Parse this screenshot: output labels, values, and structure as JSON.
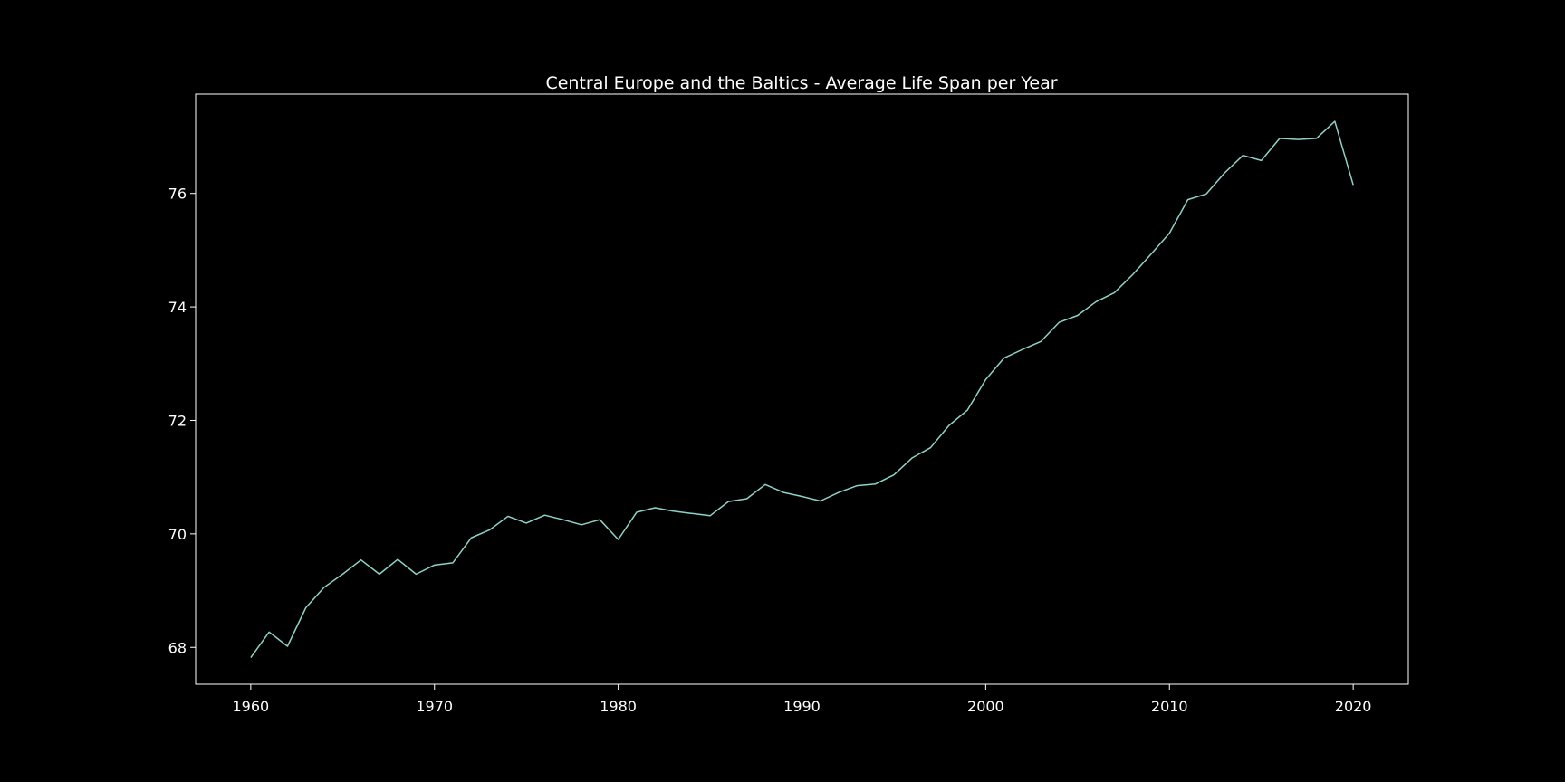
{
  "chart_data": {
    "type": "line",
    "title": "Central Europe and the Baltics - Average Life Span per Year",
    "xlabel": "",
    "ylabel": "",
    "xlim": [
      1957,
      2023
    ],
    "ylim": [
      67.35,
      77.75
    ],
    "xticks": [
      1960,
      1970,
      1980,
      1990,
      2000,
      2010,
      2020
    ],
    "yticks": [
      68,
      70,
      72,
      74,
      76
    ],
    "grid": false,
    "colors": {
      "background": "#000000",
      "line": "#8dd3c7",
      "axes": "#ffffff",
      "text": "#ffffff"
    },
    "x": [
      1960,
      1961,
      1962,
      1963,
      1964,
      1965,
      1966,
      1967,
      1968,
      1969,
      1970,
      1971,
      1972,
      1973,
      1974,
      1975,
      1976,
      1977,
      1978,
      1979,
      1980,
      1981,
      1982,
      1983,
      1984,
      1985,
      1986,
      1987,
      1988,
      1989,
      1990,
      1991,
      1992,
      1993,
      1994,
      1995,
      1996,
      1997,
      1998,
      1999,
      2000,
      2001,
      2002,
      2003,
      2004,
      2005,
      2006,
      2007,
      2008,
      2009,
      2010,
      2011,
      2012,
      2013,
      2014,
      2015,
      2016,
      2017,
      2018,
      2019,
      2020
    ],
    "series": [
      {
        "values": [
          67.82,
          68.27,
          68.02,
          68.7,
          69.06,
          69.29,
          69.54,
          69.29,
          69.55,
          69.29,
          69.45,
          69.49,
          69.93,
          70.07,
          70.31,
          70.19,
          70.33,
          70.25,
          70.16,
          70.25,
          69.9,
          70.38,
          70.46,
          70.4,
          70.36,
          70.32,
          70.57,
          70.62,
          70.87,
          70.73,
          70.66,
          70.58,
          70.73,
          70.85,
          70.88,
          71.04,
          71.34,
          71.52,
          71.91,
          72.18,
          72.72,
          73.1,
          73.25,
          73.39,
          73.73,
          73.85,
          74.09,
          74.25,
          74.57,
          74.93,
          75.3,
          75.89,
          75.99,
          76.36,
          76.67,
          76.58,
          76.97,
          76.95,
          76.97,
          77.27,
          76.15
        ]
      }
    ]
  }
}
